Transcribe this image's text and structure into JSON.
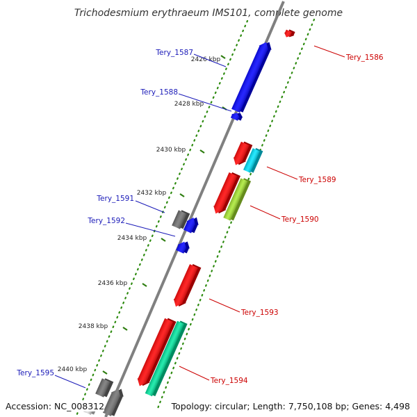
{
  "title": "Trichodesmium erythraeum IMS101, complete genome",
  "accession": "Accession: NC_008312",
  "topology": "Topology: circular; Length: 7,750,108 bp; Genes: 4,498",
  "colors": {
    "backbone": "#808080",
    "tick": "#2e7d10",
    "blue_label": "#1a1ab8",
    "red_label": "#cc0000"
  },
  "ticks": [
    {
      "label": "2426 kbp"
    },
    {
      "label": "2428 kbp"
    },
    {
      "label": "2430 kbp"
    },
    {
      "label": "2432 kbp"
    },
    {
      "label": "2434 kbp"
    },
    {
      "label": "2436 kbp"
    },
    {
      "label": "2438 kbp"
    },
    {
      "label": "2440 kbp"
    }
  ],
  "genes": [
    {
      "name": "Tery_1586",
      "strand": "forward",
      "color": "#ff0000"
    },
    {
      "name": "Tery_1587",
      "strand": "reverse",
      "color": "#0000ff"
    },
    {
      "name": "Tery_1588",
      "strand": "reverse",
      "color": "#0000ff"
    },
    {
      "name": "Tery_1589",
      "strand": "forward",
      "color": "#ff0000"
    },
    {
      "name": "Tery_1590",
      "strand": "forward",
      "color": "#ff0000"
    },
    {
      "name": "Tery_1591",
      "strand": "reverse",
      "color": "#707070"
    },
    {
      "name": "Tery_1592",
      "strand": "reverse",
      "color": "#0000ff"
    },
    {
      "name": "Tery_1593",
      "strand": "forward",
      "color": "#ff0000"
    },
    {
      "name": "Tery_1594",
      "strand": "forward",
      "color": "#ff0000"
    },
    {
      "name": "Tery_1595",
      "strand": "reverse",
      "color": "#707070"
    }
  ],
  "other_features": [
    {
      "color": "#00e5ff"
    },
    {
      "color": "#a8e830"
    },
    {
      "color": "#00e8a0"
    }
  ]
}
